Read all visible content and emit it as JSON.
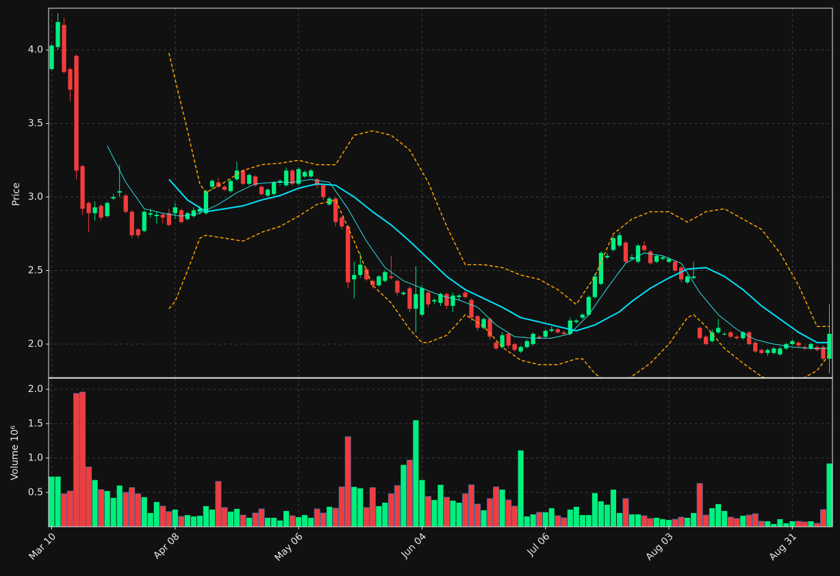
{
  "chart_data": {
    "type": "candlestick",
    "ylabel": "Price",
    "volume_ylabel": "Volume  10⁶",
    "grid": true,
    "up_color": "#00f080",
    "down_color": "#f23c3c",
    "categories": [
      "Mar 10",
      null,
      null,
      null,
      null,
      null,
      null,
      null,
      null,
      null,
      null,
      null,
      null,
      null,
      null,
      null,
      null,
      null,
      null,
      null,
      "Apr 08",
      null,
      null,
      null,
      null,
      null,
      null,
      null,
      null,
      null,
      null,
      null,
      null,
      null,
      null,
      null,
      null,
      null,
      null,
      null,
      "May 06",
      null,
      null,
      null,
      null,
      null,
      null,
      null,
      null,
      null,
      null,
      null,
      null,
      null,
      null,
      null,
      null,
      null,
      null,
      null,
      "Jun 04",
      null,
      null,
      null,
      null,
      null,
      null,
      null,
      null,
      null,
      null,
      null,
      null,
      null,
      null,
      null,
      null,
      null,
      null,
      null,
      "Jul 06",
      null,
      null,
      null,
      null,
      null,
      null,
      null,
      null,
      null,
      null,
      null,
      null,
      null,
      null,
      null,
      null,
      null,
      null,
      null,
      "Aug 03",
      null,
      null,
      null,
      null,
      null,
      null,
      null,
      null,
      null,
      null,
      null,
      null,
      null,
      null,
      null,
      null,
      null,
      null,
      null,
      "Aug 31",
      null,
      null,
      null,
      null,
      null,
      null
    ],
    "open": [
      3.87,
      4.02,
      4.17,
      3.87,
      3.96,
      3.21,
      2.96,
      2.89,
      2.94,
      2.87,
      2.99,
      3.03,
      3.01,
      2.9,
      2.78,
      2.77,
      2.88,
      2.87,
      2.88,
      2.89,
      2.89,
      2.91,
      2.85,
      2.87,
      2.9,
      2.89,
      3.07,
      3.1,
      3.07,
      3.04,
      3.12,
      3.18,
      3.09,
      3.14,
      3.07,
      3.01,
      3.02,
      3.1,
      3.08,
      3.18,
      3.09,
      3.14,
      3.14,
      3.12,
      3.08,
      2.95,
      2.99,
      2.86,
      2.8,
      2.44,
      2.47,
      2.51,
      2.43,
      2.4,
      2.43,
      2.46,
      2.43,
      2.34,
      2.38,
      2.24,
      2.2,
      2.35,
      2.29,
      2.28,
      2.34,
      2.26,
      2.32,
      2.35,
      2.3,
      2.19,
      2.11,
      2.17,
      2.01,
      1.98,
      2.07,
      2.0,
      1.95,
      1.98,
      2.0,
      2.05,
      2.05,
      2.09,
      2.1,
      2.08,
      2.07,
      2.15,
      2.18,
      2.2,
      2.32,
      2.41,
      2.59,
      2.64,
      2.67,
      2.69,
      2.58,
      2.56,
      2.67,
      2.63,
      2.56,
      2.58,
      2.56,
      2.56,
      2.52,
      2.42,
      2.45,
      2.11,
      2.05,
      2.02,
      2.08,
      2.07,
      2.08,
      2.05,
      2.04,
      2.08,
      2.01,
      1.96,
      1.94,
      1.94,
      1.93,
      1.97,
      2.0,
      2.01,
      1.98,
      1.97,
      1.98,
      1.98,
      1.9
    ],
    "high": [
      4.04,
      4.25,
      4.22,
      3.88,
      3.97,
      3.22,
      2.97,
      2.97,
      2.95,
      2.97,
      3.02,
      3.22,
      3.02,
      2.91,
      2.79,
      2.91,
      2.92,
      2.9,
      2.89,
      2.92,
      2.96,
      2.92,
      2.9,
      2.93,
      2.94,
      3.05,
      3.12,
      3.13,
      3.08,
      3.12,
      3.24,
      3.19,
      3.16,
      3.15,
      3.08,
      3.06,
      3.11,
      3.12,
      3.2,
      3.19,
      3.2,
      3.18,
      3.19,
      3.13,
      3.09,
      3.0,
      3.0,
      2.87,
      2.81,
      2.56,
      2.62,
      2.52,
      2.44,
      2.47,
      2.5,
      2.6,
      2.44,
      2.36,
      2.39,
      2.53,
      2.4,
      2.36,
      2.31,
      2.35,
      2.35,
      2.35,
      2.34,
      2.38,
      2.31,
      2.2,
      2.18,
      2.18,
      2.02,
      2.08,
      2.08,
      2.01,
      1.99,
      2.03,
      2.08,
      2.06,
      2.1,
      2.12,
      2.11,
      2.09,
      2.18,
      2.17,
      2.21,
      2.33,
      2.48,
      2.63,
      2.62,
      2.74,
      2.76,
      2.7,
      2.61,
      2.68,
      2.7,
      2.64,
      2.61,
      2.6,
      2.59,
      2.57,
      2.53,
      2.47,
      2.56,
      2.12,
      2.06,
      2.1,
      2.17,
      2.08,
      2.09,
      2.06,
      2.09,
      2.09,
      2.02,
      1.97,
      1.97,
      1.98,
      1.98,
      2.01,
      2.03,
      2.02,
      1.99,
      2.01,
      1.99,
      1.99,
      2.27
    ],
    "low": [
      3.86,
      4.0,
      3.84,
      3.65,
      3.12,
      2.88,
      2.76,
      2.84,
      2.84,
      2.86,
      2.98,
      3.0,
      2.89,
      2.72,
      2.72,
      2.76,
      2.86,
      2.82,
      2.82,
      2.8,
      2.85,
      2.82,
      2.84,
      2.86,
      2.88,
      2.88,
      3.05,
      3.06,
      3.04,
      3.03,
      3.11,
      3.08,
      3.08,
      3.07,
      3.01,
      3.0,
      3.01,
      3.08,
      3.07,
      3.08,
      3.08,
      3.13,
      3.13,
      3.06,
      2.98,
      2.94,
      2.8,
      2.78,
      2.38,
      2.31,
      2.45,
      2.43,
      2.38,
      2.39,
      2.42,
      2.44,
      2.33,
      2.33,
      2.22,
      2.08,
      2.19,
      2.25,
      2.27,
      2.26,
      2.24,
      2.22,
      2.3,
      2.31,
      2.16,
      2.09,
      2.1,
      2.03,
      1.96,
      1.97,
      1.97,
      1.95,
      1.94,
      1.97,
      1.99,
      2.03,
      2.04,
      2.08,
      2.07,
      2.06,
      2.06,
      2.14,
      2.17,
      2.19,
      2.31,
      2.4,
      2.58,
      2.63,
      2.66,
      2.55,
      2.57,
      2.55,
      2.63,
      2.54,
      2.55,
      2.57,
      2.55,
      2.49,
      2.42,
      2.41,
      2.44,
      2.03,
      1.99,
      2.01,
      2.07,
      2.06,
      2.04,
      2.03,
      2.03,
      1.99,
      1.94,
      1.93,
      1.92,
      1.93,
      1.92,
      1.96,
      1.99,
      1.98,
      1.96,
      1.96,
      1.95,
      1.89,
      1.8
    ],
    "close": [
      4.03,
      4.19,
      3.85,
      3.73,
      3.18,
      2.92,
      2.89,
      2.93,
      2.86,
      2.96,
      3.0,
      3.04,
      2.9,
      2.74,
      2.74,
      2.9,
      2.89,
      2.88,
      2.86,
      2.81,
      2.93,
      2.83,
      2.89,
      2.91,
      2.92,
      3.04,
      3.11,
      3.07,
      3.05,
      3.11,
      3.18,
      3.09,
      3.15,
      3.08,
      3.02,
      3.05,
      3.1,
      3.11,
      3.18,
      3.09,
      3.19,
      3.17,
      3.18,
      3.08,
      3.0,
      2.99,
      2.83,
      2.8,
      2.42,
      2.47,
      2.54,
      2.44,
      2.4,
      2.46,
      2.49,
      2.45,
      2.35,
      2.35,
      2.24,
      2.34,
      2.38,
      2.27,
      2.3,
      2.34,
      2.26,
      2.33,
      2.33,
      2.32,
      2.18,
      2.11,
      2.17,
      2.05,
      1.97,
      2.06,
      1.99,
      1.96,
      1.98,
      2.02,
      2.07,
      2.04,
      2.09,
      2.1,
      2.08,
      2.07,
      2.16,
      2.16,
      2.2,
      2.32,
      2.46,
      2.62,
      2.6,
      2.72,
      2.74,
      2.56,
      2.59,
      2.67,
      2.64,
      2.55,
      2.6,
      2.59,
      2.58,
      2.5,
      2.44,
      2.46,
      2.46,
      2.04,
      2.0,
      2.08,
      2.11,
      2.07,
      2.05,
      2.04,
      2.08,
      2.0,
      1.95,
      1.94,
      1.96,
      1.97,
      1.97,
      2.0,
      2.02,
      1.99,
      1.97,
      2.0,
      1.96,
      1.9,
      2.07
    ],
    "ylim": [
      1.772,
      4.284
    ],
    "yticks": [
      {
        "value": 2,
        "label": "2.0"
      },
      {
        "value": 2.5,
        "label": "2.5"
      },
      {
        "value": 3,
        "label": "3.0"
      },
      {
        "value": 3.5,
        "label": "3.5"
      },
      {
        "value": 4,
        "label": "4.0"
      }
    ],
    "volume": [
      0.73,
      0.73,
      0.48,
      0.52,
      1.94,
      1.96,
      0.87,
      0.68,
      0.54,
      0.52,
      0.42,
      0.6,
      0.5,
      0.57,
      0.48,
      0.43,
      0.2,
      0.36,
      0.3,
      0.22,
      0.25,
      0.15,
      0.17,
      0.15,
      0.16,
      0.3,
      0.25,
      0.66,
      0.28,
      0.22,
      0.26,
      0.17,
      0.13,
      0.2,
      0.26,
      0.13,
      0.13,
      0.09,
      0.23,
      0.16,
      0.14,
      0.17,
      0.13,
      0.26,
      0.2,
      0.29,
      0.27,
      0.58,
      1.31,
      0.58,
      0.56,
      0.28,
      0.57,
      0.3,
      0.35,
      0.48,
      0.6,
      0.9,
      0.97,
      1.55,
      0.68,
      0.44,
      0.39,
      0.61,
      0.43,
      0.38,
      0.35,
      0.48,
      0.61,
      0.33,
      0.24,
      0.41,
      0.58,
      0.54,
      0.39,
      0.3,
      1.11,
      0.15,
      0.18,
      0.21,
      0.21,
      0.27,
      0.16,
      0.13,
      0.25,
      0.29,
      0.17,
      0.17,
      0.49,
      0.37,
      0.32,
      0.54,
      0.2,
      0.41,
      0.18,
      0.18,
      0.16,
      0.12,
      0.13,
      0.11,
      0.1,
      0.11,
      0.14,
      0.13,
      0.2,
      0.63,
      0.17,
      0.27,
      0.33,
      0.23,
      0.14,
      0.12,
      0.16,
      0.17,
      0.19,
      0.08,
      0.08,
      0.04,
      0.11,
      0.05,
      0.08,
      0.08,
      0.07,
      0.08,
      0.05,
      0.25,
      0.92
    ],
    "volume_ylim": [
      0,
      2.16
    ],
    "volume_yticks": [
      0.5,
      {
        "value": 1,
        "label": "1.0"
      },
      1.5,
      {
        "value": 2,
        "label": "2.0"
      }
    ],
    "overlays": [
      {
        "color": "#2ee6e6",
        "width": 1,
        "dashed": false,
        "x": [
          9,
          12,
          15,
          18,
          21,
          24,
          27,
          30,
          33,
          36,
          39,
          42,
          45,
          48,
          51,
          54,
          57,
          60,
          63,
          66,
          69,
          72,
          75,
          78,
          81,
          84,
          87,
          90,
          93,
          96,
          99,
          102,
          105,
          108,
          111,
          114,
          117,
          120,
          123,
          126
        ],
        "values": [
          3.35,
          3.1,
          2.92,
          2.89,
          2.87,
          2.89,
          2.95,
          3.03,
          3.09,
          3.1,
          3.1,
          3.12,
          3.1,
          2.92,
          2.7,
          2.52,
          2.43,
          2.38,
          2.33,
          2.3,
          2.25,
          2.13,
          2.05,
          2.04,
          2.04,
          2.07,
          2.2,
          2.38,
          2.55,
          2.62,
          2.6,
          2.55,
          2.35,
          2.2,
          2.1,
          2.03,
          2.0,
          1.98,
          1.97,
          1.97
        ]
      },
      {
        "color": "#00e5ff",
        "width": 2,
        "dashed": false,
        "x": [
          19,
          22,
          25,
          28,
          31,
          34,
          37,
          40,
          43,
          46,
          49,
          52,
          55,
          58,
          61,
          64,
          67,
          70,
          73,
          76,
          79,
          82,
          85,
          88,
          92,
          94,
          97,
          100,
          103,
          106,
          109,
          112,
          115,
          118,
          121,
          124,
          126
        ],
        "values": [
          3.12,
          2.98,
          2.9,
          2.92,
          2.94,
          2.98,
          3.01,
          3.06,
          3.09,
          3.08,
          3.0,
          2.9,
          2.81,
          2.7,
          2.58,
          2.46,
          2.37,
          2.31,
          2.25,
          2.18,
          2.15,
          2.12,
          2.09,
          2.13,
          2.22,
          2.29,
          2.38,
          2.45,
          2.51,
          2.52,
          2.46,
          2.37,
          2.26,
          2.17,
          2.08,
          2.01,
          2.01
        ]
      },
      {
        "color": "#ffa500",
        "width": 1.5,
        "dashed": true,
        "x": [
          19,
          20,
          22,
          24,
          25,
          28,
          31,
          34,
          37,
          40,
          43,
          46,
          49,
          52,
          55,
          58,
          61,
          64,
          67,
          70,
          73,
          76,
          79,
          82,
          85,
          88,
          91,
          94,
          97,
          100,
          103,
          106,
          109,
          112,
          115,
          118,
          121,
          124,
          126
        ],
        "values": [
          3.98,
          3.8,
          3.45,
          3.09,
          3.03,
          3.1,
          3.18,
          3.22,
          3.23,
          3.25,
          3.22,
          3.22,
          3.42,
          3.45,
          3.42,
          3.32,
          3.1,
          2.8,
          2.54,
          2.54,
          2.52,
          2.47,
          2.44,
          2.37,
          2.27,
          2.46,
          2.75,
          2.85,
          2.9,
          2.9,
          2.83,
          2.9,
          2.92,
          2.85,
          2.78,
          2.62,
          2.4,
          2.12,
          2.12
        ]
      },
      {
        "color": "#ffa500",
        "width": 1.5,
        "dashed": true,
        "x": [
          19,
          20,
          22,
          24,
          25,
          28,
          31,
          34,
          37,
          40,
          43,
          46,
          49,
          52,
          55,
          58,
          60,
          61,
          64,
          67,
          70,
          73,
          76,
          79,
          82,
          85,
          86,
          88,
          91,
          94,
          97,
          100,
          103,
          104,
          106,
          109,
          112,
          115,
          118,
          121,
          124,
          126
        ],
        "values": [
          2.24,
          2.29,
          2.5,
          2.72,
          2.74,
          2.72,
          2.7,
          2.76,
          2.8,
          2.87,
          2.95,
          2.98,
          2.7,
          2.4,
          2.28,
          2.1,
          2.01,
          2.01,
          2.06,
          2.2,
          2.12,
          1.98,
          1.89,
          1.86,
          1.86,
          1.9,
          1.9,
          1.8,
          1.71,
          1.78,
          1.87,
          2.0,
          2.18,
          2.2,
          2.12,
          1.97,
          1.87,
          1.78,
          1.72,
          1.75,
          1.82,
          1.93
        ]
      }
    ]
  }
}
